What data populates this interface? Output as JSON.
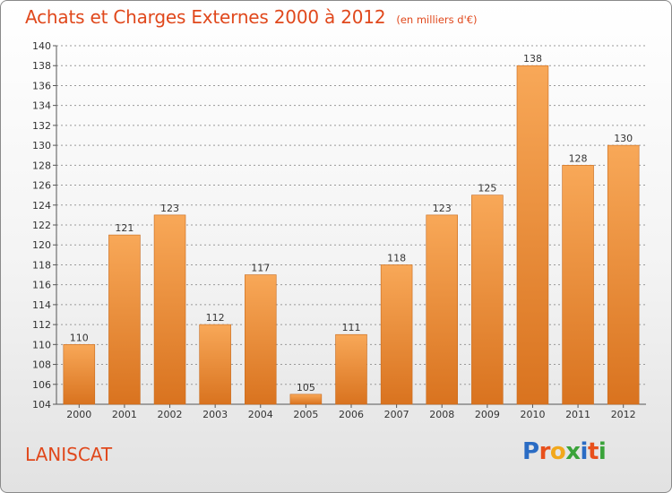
{
  "header": {
    "title": "Achats et Charges Externes 2000 à 2012",
    "subtitle": "(en milliers d'€)"
  },
  "footer": {
    "commune": "LANISCAT",
    "brand": [
      "P",
      "r",
      "o",
      "x",
      "i",
      "t",
      "i"
    ]
  },
  "colors": {
    "title": "#e0481c",
    "bar_top": "#f8a858",
    "bar_bottom": "#d9731f",
    "grid": "#9a9a9a",
    "brand": [
      "#2a6cc4",
      "#e8501c",
      "#f2a81c",
      "#3aa33a",
      "#2a6cc4",
      "#e8501c",
      "#3aa33a"
    ]
  },
  "chart_data": {
    "type": "bar",
    "title": "Achats et Charges Externes 2000 à 2012",
    "subtitle": "(en milliers d'€)",
    "categories": [
      "2000",
      "2001",
      "2002",
      "2003",
      "2004",
      "2005",
      "2006",
      "2007",
      "2008",
      "2009",
      "2010",
      "2011",
      "2012"
    ],
    "values": [
      110,
      121,
      123,
      112,
      117,
      105,
      111,
      118,
      123,
      125,
      138,
      128,
      130
    ],
    "value_labels": [
      "110",
      "121",
      "123",
      "112",
      "117",
      "105",
      "111",
      "118",
      "123",
      "125",
      "138",
      "128",
      "130"
    ],
    "ylim": [
      104,
      140
    ],
    "yticks": [
      104,
      106,
      108,
      110,
      112,
      114,
      116,
      118,
      120,
      122,
      124,
      126,
      128,
      130,
      132,
      134,
      136,
      138,
      140
    ],
    "ytick_labels": [
      "104",
      "106",
      "108",
      "110",
      "112",
      "114",
      "116",
      "118",
      "120",
      "122",
      "124",
      "126",
      "128",
      "130",
      "132",
      "134",
      "136",
      "138",
      "140"
    ],
    "grid": true,
    "xlabel": "",
    "ylabel": ""
  }
}
